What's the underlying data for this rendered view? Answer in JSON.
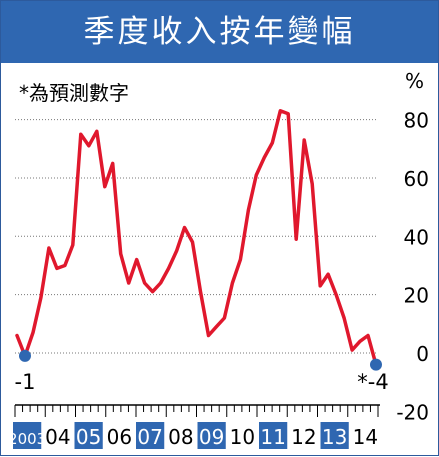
{
  "header": {
    "title": "季度收入按年變幅"
  },
  "note": "*為預測數字",
  "unit": "%",
  "colors": {
    "title_bg": "#2f67b1",
    "line": "#e0182d",
    "marker": "#2f67b1",
    "year_box": "#2f67b1"
  },
  "chart_data": {
    "type": "line",
    "title": "季度收入按年變幅",
    "ylabel": "%",
    "ylim": [
      -20,
      85
    ],
    "yticks": [
      80,
      60,
      40,
      20,
      0,
      -20
    ],
    "ytick_labels": [
      "80",
      "60",
      "40",
      "20",
      "0",
      "-20"
    ],
    "year_labels": [
      "2003",
      "04",
      "05",
      "06",
      "07",
      "08",
      "09",
      "10",
      "11",
      "12",
      "13",
      "14"
    ],
    "highlighted_years": [
      "2003",
      "05",
      "07",
      "09",
      "11",
      "13"
    ],
    "series": [
      {
        "values": [
          6,
          -1,
          7,
          19,
          36,
          29,
          30,
          37,
          75,
          71,
          76,
          57,
          65,
          34,
          24,
          32,
          24,
          21,
          24,
          29,
          35,
          43,
          38,
          21,
          6,
          9,
          12,
          24,
          32,
          49,
          61,
          67,
          72,
          83,
          82,
          39,
          73,
          58,
          23,
          27,
          20,
          12,
          1,
          4,
          6,
          -4
        ]
      }
    ],
    "annotations": [
      {
        "text": "-1",
        "index": 1,
        "value": -1
      },
      {
        "text": "*-4",
        "index": 45,
        "value": -4
      }
    ],
    "grid": true
  }
}
